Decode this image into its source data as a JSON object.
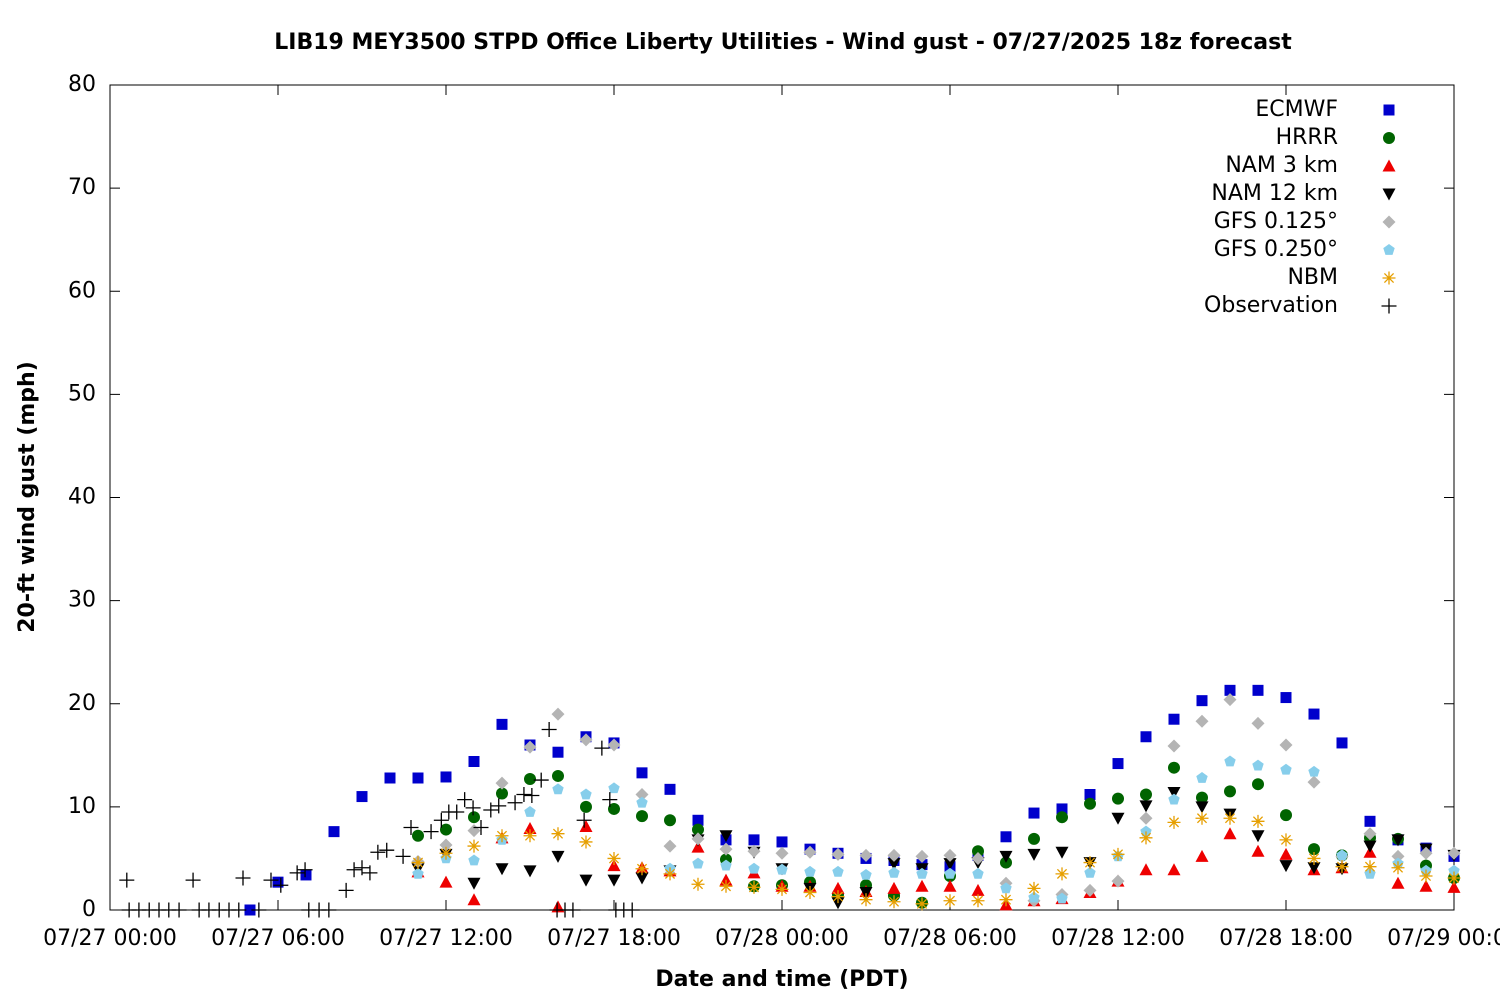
{
  "chart_data": {
    "type": "scatter",
    "title": "LIB19 MEY3500 STPD Office Liberty Utilities - Wind gust - 07/27/2025 18z forecast",
    "x_label": "Date and time (PDT)",
    "y_label": "20-ft wind gust (mph)",
    "xlim": [
      "07/27 00:00",
      "07/29 00:00"
    ],
    "xticks": [
      "07/27 00:00",
      "07/27 06:00",
      "07/27 12:00",
      "07/27 18:00",
      "07/28 00:00",
      "07/28 06:00",
      "07/28 12:00",
      "07/28 18:00",
      "07/29 00:00"
    ],
    "ylim": [
      0,
      80
    ],
    "yticks": [
      0,
      10,
      20,
      30,
      40,
      50,
      60,
      70,
      80
    ],
    "grid": false,
    "legend": "top right",
    "x": [
      "07/27 05:00",
      "07/27 06:00",
      "07/27 07:00",
      "07/27 08:00",
      "07/27 09:00",
      "07/27 10:00",
      "07/27 11:00",
      "07/27 12:00",
      "07/27 13:00",
      "07/27 14:00",
      "07/27 15:00",
      "07/27 16:00",
      "07/27 17:00",
      "07/27 18:00",
      "07/27 19:00",
      "07/27 20:00",
      "07/27 21:00",
      "07/27 22:00",
      "07/27 23:00",
      "07/28 00:00",
      "07/28 01:00",
      "07/28 02:00",
      "07/28 03:00",
      "07/28 04:00",
      "07/28 05:00",
      "07/28 06:00",
      "07/28 07:00",
      "07/28 08:00",
      "07/28 09:00",
      "07/28 10:00",
      "07/28 11:00",
      "07/28 12:00",
      "07/28 13:00",
      "07/28 14:00",
      "07/28 15:00",
      "07/28 16:00",
      "07/28 17:00",
      "07/28 18:00",
      "07/28 19:00",
      "07/28 20:00",
      "07/28 21:00",
      "07/28 22:00",
      "07/28 23:00",
      "07/29 00:00"
    ],
    "series": [
      {
        "name": "ECMWF",
        "color": "#0000cc",
        "marker": "square",
        "values": [
          0,
          2.7,
          3.4,
          7.6,
          11.0,
          12.8,
          12.8,
          12.9,
          14.4,
          18.0,
          16.0,
          15.3,
          16.8,
          16.2,
          13.3,
          11.7,
          8.7,
          6.8,
          6.8,
          6.6,
          5.9,
          5.5,
          5.0,
          4.8,
          4.4,
          4.2,
          5.3,
          7.1,
          9.4,
          9.8,
          11.2,
          14.2,
          16.8,
          18.5,
          20.3,
          21.3,
          21.3,
          20.6,
          19.0,
          16.2,
          8.6,
          6.8,
          6.0,
          5.2
        ]
      },
      {
        "name": "HRRR",
        "color": "#006400",
        "marker": "circle",
        "values": [
          null,
          null,
          null,
          null,
          null,
          null,
          7.2,
          7.8,
          9.0,
          11.3,
          12.7,
          13.0,
          10.0,
          9.8,
          9.1,
          8.7,
          7.8,
          4.9,
          2.3,
          2.4,
          2.7,
          1.5,
          2.4,
          1.4,
          0.7,
          3.3,
          5.7,
          4.6,
          6.9,
          9.0,
          10.3,
          10.8,
          11.2,
          13.8,
          10.9,
          11.5,
          12.2,
          9.2,
          5.9,
          5.3,
          7.0,
          6.9,
          4.3,
          3.1
        ]
      },
      {
        "name": "NAM 3 km",
        "color": "#ee0000",
        "marker": "triangle",
        "values": [
          null,
          null,
          null,
          null,
          null,
          null,
          3.7,
          2.7,
          1.0,
          7.0,
          7.9,
          0.3,
          8.1,
          4.3,
          4.1,
          3.8,
          6.1,
          2.9,
          3.6,
          2.3,
          2.3,
          2.1,
          1.8,
          2.1,
          2.3,
          2.3,
          1.9,
          0.5,
          0.9,
          1.1,
          1.7,
          2.8,
          3.9,
          3.9,
          5.2,
          7.4,
          5.7,
          5.4,
          3.9,
          4.1,
          5.6,
          2.6,
          2.3,
          2.2
        ]
      },
      {
        "name": "NAM 12 km",
        "color": "#000000",
        "marker": "triangle-down",
        "values": [
          null,
          null,
          null,
          null,
          null,
          null,
          4.0,
          5.4,
          2.6,
          4.0,
          3.8,
          5.2,
          2.9,
          2.9,
          3.1,
          3.8,
          6.8,
          7.2,
          5.6,
          4.0,
          2.1,
          0.7,
          1.7,
          4.5,
          4.0,
          4.5,
          4.6,
          5.2,
          5.4,
          5.6,
          4.6,
          8.9,
          10.1,
          11.4,
          10.0,
          9.3,
          7.2,
          4.3,
          4.1,
          4.0,
          6.2,
          6.8,
          5.9,
          5.3
        ]
      },
      {
        "name": "GFS 0.125°",
        "color": "#b4b4b4",
        "marker": "diamond",
        "values": [
          null,
          null,
          null,
          null,
          null,
          null,
          4.7,
          6.3,
          7.7,
          12.3,
          15.8,
          19.0,
          16.5,
          16.0,
          11.2,
          6.2,
          6.9,
          5.9,
          5.7,
          5.5,
          5.6,
          5.4,
          5.3,
          5.3,
          5.2,
          5.3,
          5.0,
          2.6,
          0.9,
          1.5,
          1.9,
          2.8,
          8.9,
          15.9,
          18.3,
          20.4,
          18.1,
          16.0,
          12.4,
          5.2,
          7.4,
          5.2,
          5.5,
          5.5
        ]
      },
      {
        "name": "GFS 0.250°",
        "color": "#87ceeb",
        "marker": "pentagon",
        "values": [
          null,
          null,
          null,
          null,
          null,
          null,
          3.5,
          5.0,
          4.8,
          6.8,
          9.5,
          11.7,
          11.2,
          11.8,
          10.4,
          4.0,
          4.5,
          4.3,
          4.0,
          3.9,
          3.7,
          3.7,
          3.4,
          3.6,
          3.5,
          3.5,
          3.5,
          2.1,
          1.2,
          1.1,
          3.6,
          5.2,
          7.6,
          10.7,
          12.8,
          14.4,
          14.0,
          13.6,
          13.4,
          5.3,
          3.5,
          4.5,
          3.8,
          3.8
        ]
      },
      {
        "name": "NBM",
        "color": "#e69f00",
        "marker": "star",
        "values": [
          null,
          null,
          null,
          null,
          null,
          null,
          4.6,
          5.5,
          6.2,
          7.2,
          7.2,
          7.4,
          6.6,
          5.0,
          4.0,
          3.5,
          2.5,
          2.3,
          2.2,
          2.0,
          1.7,
          1.3,
          1.0,
          0.8,
          0.6,
          0.9,
          0.9,
          1.0,
          2.1,
          3.5,
          4.6,
          5.4,
          7.0,
          8.5,
          8.9,
          8.9,
          8.6,
          6.8,
          5.0,
          4.2,
          4.2,
          4.1,
          3.3,
          3.1
        ]
      },
      {
        "name": "Observation",
        "color": "#000000",
        "marker": "plus",
        "x": [
          "07/27 00:36",
          "07/27 00:41",
          "07/27 01:02",
          "07/27 01:24",
          "07/27 01:45",
          "07/27 02:06",
          "07/27 02:28",
          "07/27 02:58",
          "07/27 03:11",
          "07/27 03:32",
          "07/27 03:54",
          "07/27 04:15",
          "07/27 04:36",
          "07/27 04:45",
          "07/27 05:19",
          "07/27 05:45",
          "07/27 06:06",
          "07/27 06:41",
          "07/27 06:58",
          "07/27 07:06",
          "07/27 07:28",
          "07/27 07:49",
          "07/27 08:26",
          "07/27 08:43",
          "07/27 09:00",
          "07/27 09:17",
          "07/27 09:34",
          "07/27 09:53",
          "07/27 10:28",
          "07/27 10:45",
          "07/27 11:28",
          "07/27 11:50",
          "07/27 12:06",
          "07/27 12:23",
          "07/27 12:40",
          "07/27 12:58",
          "07/27 13:15",
          "07/27 13:36",
          "07/27 13:53",
          "07/27 14:28",
          "07/27 14:47",
          "07/27 15:04",
          "07/27 15:24",
          "07/27 15:41",
          "07/27 15:58",
          "07/27 16:15",
          "07/27 16:32",
          "07/27 16:56",
          "07/27 17:34",
          "07/27 17:51",
          "07/27 18:04",
          "07/27 18:21",
          "07/27 18:39"
        ],
        "values": [
          2.9,
          0,
          0,
          0,
          0,
          0,
          0,
          2.9,
          0,
          0,
          0,
          0,
          0,
          3.1,
          0,
          2.9,
          2.4,
          3.6,
          3.9,
          0,
          0,
          0,
          1.9,
          3.9,
          4.1,
          3.6,
          5.6,
          5.8,
          5.2,
          8.0,
          7.6,
          8.7,
          9.5,
          9.5,
          10.7,
          9.9,
          8.0,
          9.7,
          10.1,
          10.4,
          11.2,
          11.1,
          12.6,
          17.5,
          0,
          0,
          0,
          8.7,
          15.7,
          10.7,
          0,
          0,
          0
        ]
      }
    ]
  }
}
